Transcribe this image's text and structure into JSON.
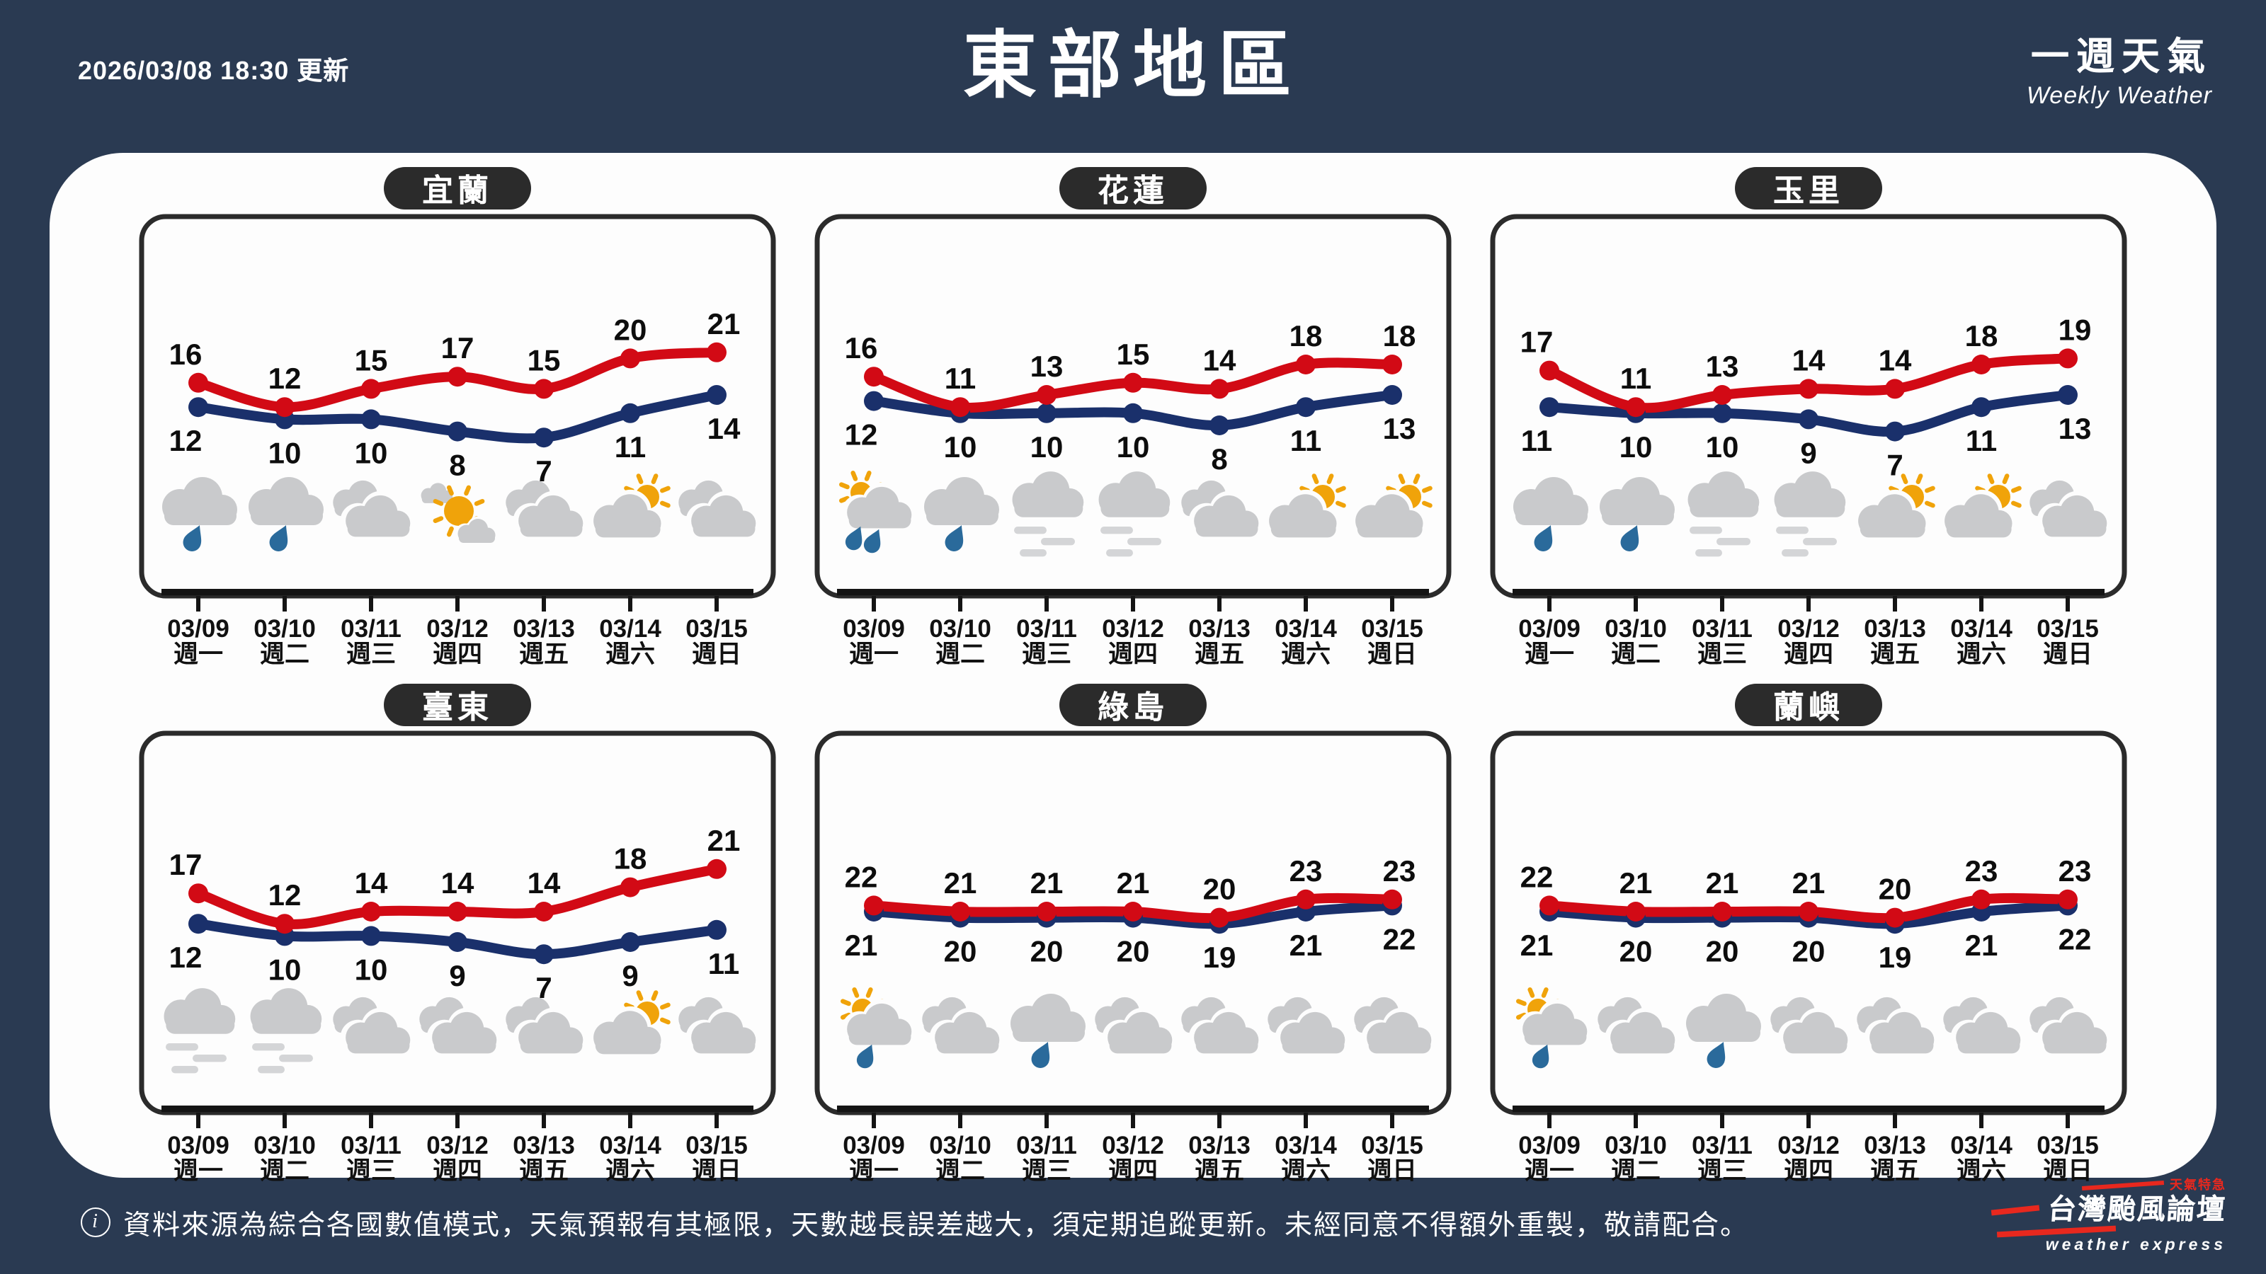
{
  "header": {
    "updated": "2026/03/08 18:30 更新",
    "title": "東部地區",
    "subtitle_zh": "一週天氣",
    "subtitle_en": "Weekly Weather"
  },
  "dates": [
    "03/09",
    "03/10",
    "03/11",
    "03/12",
    "03/13",
    "03/14",
    "03/15"
  ],
  "weekdays": [
    "週一",
    "週二",
    "週三",
    "週四",
    "週五",
    "週六",
    "週日"
  ],
  "chart_data": [
    {
      "type": "line",
      "title": "宜蘭",
      "categories": [
        "03/09",
        "03/10",
        "03/11",
        "03/12",
        "03/13",
        "03/14",
        "03/15"
      ],
      "weekdays": [
        "週一",
        "週二",
        "週三",
        "週四",
        "週五",
        "週六",
        "週日"
      ],
      "series": [
        {
          "name": "high_temp",
          "color": "#d20a15",
          "values": [
            16,
            12,
            15,
            17,
            15,
            20,
            21
          ]
        },
        {
          "name": "low_temp",
          "color": "#1a306b",
          "values": [
            12,
            10,
            10,
            8,
            7,
            11,
            14
          ]
        }
      ],
      "icons": [
        "rain",
        "rain",
        "cloudy",
        "mostly-sunny",
        "cloudy",
        "partly-sunny",
        "cloudy"
      ],
      "legend": "none",
      "grid": "off",
      "unit": "°C"
    },
    {
      "type": "line",
      "title": "花蓮",
      "categories": [
        "03/09",
        "03/10",
        "03/11",
        "03/12",
        "03/13",
        "03/14",
        "03/15"
      ],
      "weekdays": [
        "週一",
        "週二",
        "週三",
        "週四",
        "週五",
        "週六",
        "週日"
      ],
      "series": [
        {
          "name": "high_temp",
          "color": "#d20a15",
          "values": [
            16,
            11,
            13,
            15,
            14,
            18,
            18
          ]
        },
        {
          "name": "low_temp",
          "color": "#1a306b",
          "values": [
            12,
            10,
            10,
            10,
            8,
            11,
            13
          ]
        }
      ],
      "icons": [
        "sun-shower-2",
        "rain",
        "fog",
        "fog",
        "cloudy",
        "partly-sunny",
        "partly-sunny"
      ],
      "legend": "none",
      "grid": "off",
      "unit": "°C"
    },
    {
      "type": "line",
      "title": "玉里",
      "categories": [
        "03/09",
        "03/10",
        "03/11",
        "03/12",
        "03/13",
        "03/14",
        "03/15"
      ],
      "weekdays": [
        "週一",
        "週二",
        "週三",
        "週四",
        "週五",
        "週六",
        "週日"
      ],
      "series": [
        {
          "name": "high_temp",
          "color": "#d20a15",
          "values": [
            17,
            11,
            13,
            14,
            14,
            18,
            19
          ]
        },
        {
          "name": "low_temp",
          "color": "#1a306b",
          "values": [
            11,
            10,
            10,
            9,
            7,
            11,
            13
          ]
        }
      ],
      "icons": [
        "rain",
        "rain",
        "fog",
        "fog",
        "partly-sunny",
        "partly-sunny",
        "cloudy"
      ],
      "legend": "none",
      "grid": "off",
      "unit": "°C"
    },
    {
      "type": "line",
      "title": "臺東",
      "categories": [
        "03/09",
        "03/10",
        "03/11",
        "03/12",
        "03/13",
        "03/14",
        "03/15"
      ],
      "weekdays": [
        "週一",
        "週二",
        "週三",
        "週四",
        "週五",
        "週六",
        "週日"
      ],
      "series": [
        {
          "name": "high_temp",
          "color": "#d20a15",
          "values": [
            17,
            12,
            14,
            14,
            14,
            18,
            21
          ]
        },
        {
          "name": "low_temp",
          "color": "#1a306b",
          "values": [
            12,
            10,
            10,
            9,
            7,
            9,
            11
          ]
        }
      ],
      "icons": [
        "fog",
        "fog",
        "cloudy",
        "cloudy",
        "cloudy",
        "partly-sunny",
        "cloudy"
      ],
      "legend": "none",
      "grid": "off",
      "unit": "°C"
    },
    {
      "type": "line",
      "title": "綠島",
      "categories": [
        "03/09",
        "03/10",
        "03/11",
        "03/12",
        "03/13",
        "03/14",
        "03/15"
      ],
      "weekdays": [
        "週一",
        "週二",
        "週三",
        "週四",
        "週五",
        "週六",
        "週日"
      ],
      "series": [
        {
          "name": "high_temp",
          "color": "#d20a15",
          "values": [
            22,
            21,
            21,
            21,
            20,
            23,
            23
          ]
        },
        {
          "name": "low_temp",
          "color": "#1a306b",
          "values": [
            21,
            20,
            20,
            20,
            19,
            21,
            22
          ]
        }
      ],
      "icons": [
        "sun-shower-1",
        "cloudy",
        "rain",
        "cloudy",
        "cloudy",
        "cloudy",
        "cloudy"
      ],
      "legend": "none",
      "grid": "off",
      "unit": "°C"
    },
    {
      "type": "line",
      "title": "蘭嶼",
      "categories": [
        "03/09",
        "03/10",
        "03/11",
        "03/12",
        "03/13",
        "03/14",
        "03/15"
      ],
      "weekdays": [
        "週一",
        "週二",
        "週三",
        "週四",
        "週五",
        "週六",
        "週日"
      ],
      "series": [
        {
          "name": "high_temp",
          "color": "#d20a15",
          "values": [
            22,
            21,
            21,
            21,
            20,
            23,
            23
          ]
        },
        {
          "name": "low_temp",
          "color": "#1a306b",
          "values": [
            21,
            20,
            20,
            20,
            19,
            21,
            22
          ]
        }
      ],
      "icons": [
        "sun-shower-1",
        "cloudy",
        "rain",
        "cloudy",
        "cloudy",
        "cloudy",
        "cloudy"
      ],
      "legend": "none",
      "grid": "off",
      "unit": "°C"
    }
  ],
  "footer": {
    "note": "資料來源為綜合各國數值模式，天氣預報有其極限，天數越長誤差越大，須定期追蹤更新。未經同意不得額外重製，敬請配合。",
    "brand_zh": "台灣颱風論壇",
    "brand_en": "weather express",
    "brand_tag": "天氣特急"
  },
  "colors": {
    "background": "#2a3a52",
    "card": "#fdfdfd",
    "high_line": "#d20a15",
    "low_line": "#1a306b",
    "value_label": "#0d0d0d",
    "cloud_gray": "#c9cacc",
    "fog_gray": "#d4d5d7",
    "rain_blue": "#2a6a9b",
    "sun_orange": "#f0a30a",
    "pill_bg": "#2b2b2b",
    "axis": "#141414",
    "brand_red": "#e8281e"
  }
}
